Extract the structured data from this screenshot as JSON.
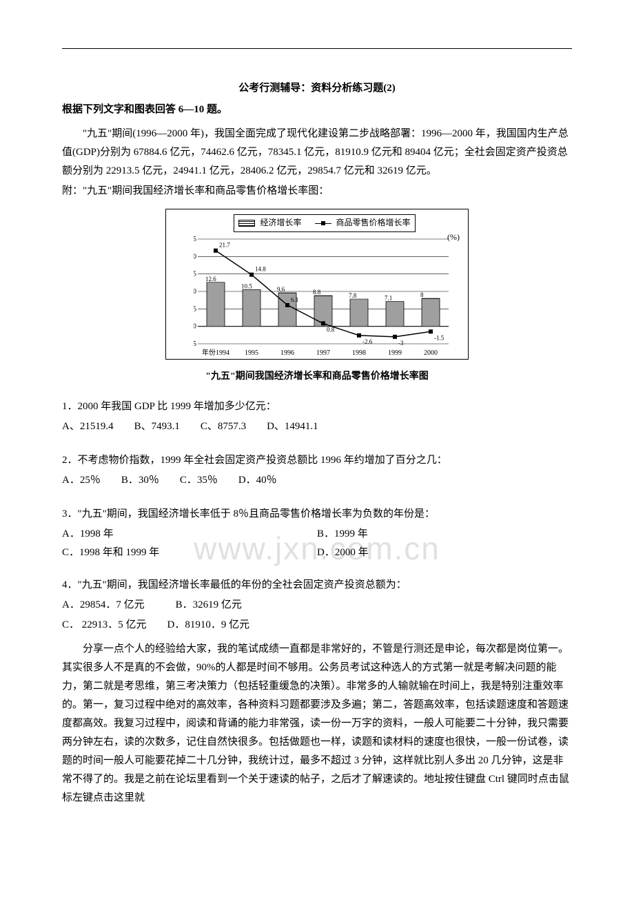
{
  "title": "公考行测辅导：资料分析练习题(2)",
  "instruction": "根据下列文字和图表回答 6—10 题。",
  "passage1": "\"九五\"期间(1996—2000 年)，我国全面完成了现代化建设第二步战略部署：1996—2000 年，我国国内生产总值(GDP)分别为 67884.6 亿元，74462.6 亿元，78345.1 亿元，81910.9 亿元和 89404 亿元；全社会固定资产投资总额分别为 22913.5 亿元，24941.1 亿元，28406.2 亿元，29854.7 亿元和 32619 亿元。",
  "passage2": "附：\"九五\"期间我国经济增长率和商品零售价格增长率图：",
  "chart": {
    "type": "bar+line",
    "legend_bar": "经济增长率",
    "legend_line": "商品零售价格增长率",
    "unit": "(%)",
    "years": [
      "1994",
      "1995",
      "1996",
      "1997",
      "1998",
      "1999",
      "2000"
    ],
    "bar_values": [
      12.6,
      10.5,
      9.6,
      8.8,
      7.8,
      7.1,
      8.0
    ],
    "line_values": [
      21.7,
      14.8,
      6.1,
      0.8,
      -2.6,
      -3.0,
      -1.5
    ],
    "ylim": [
      -5,
      25
    ],
    "yticks": [
      -5,
      0,
      5,
      10,
      15,
      20,
      25
    ],
    "xaxis_label": "年份",
    "year_label_text": "年份1994",
    "bar_color_pattern": "hatched",
    "line_color": "#000000",
    "bg_color": "#ffffff",
    "border_color": "#000000",
    "grid_color": "#000000",
    "label_fontsize": 12,
    "bar_width": 0.5,
    "caption": "\"九五\"期间我国经济增长率和商品零售价格增长率图"
  },
  "q1": {
    "stem": "1．2000 年我国 GDP 比 1999 年增加多少亿元：",
    "opts": "A、21519.4　　B、7493.1　　C、8757.3　　D、14941.1"
  },
  "q2": {
    "stem": "2．不考虑物价指数，1999 年全社会固定资产投资总额比 1996 年约增加了百分之几：",
    "opts": "A．25％　　B．30％　　C．35％　　D．40％"
  },
  "q3": {
    "stem": "3．\"九五\"期间，我国经济增长率低于 8％且商品零售价格增长率为负数的年份是：",
    "a": "A．1998 年",
    "b": "B．1999 年",
    "c": "C．1998 年和 1999 年",
    "d": "D．2000 年"
  },
  "q4": {
    "stem": "4．\"九五\"期间，我国经济增长率最低的年份的全社会固定资产投资总额为：",
    "line1": "A．29854．7 亿元　　　B．32619 亿元",
    "line2": "C．  22913．5 亿元　　D．81910．9 亿元"
  },
  "bigpara": "分享一点个人的经验给大家，我的笔试成绩一直都是非常好的，不管是行测还是申论，每次都是岗位第一。其实很多人不是真的不会做，90%的人都是时间不够用。公务员考试这种选人的方式第一就是考解决问题的能力，第二就是考思维，第三考决策力（包括轻重缓急的决策）。非常多的人输就输在时间上，我是特别注重效率的。第一，复习过程中绝对的高效率，各种资料习题都要涉及多遍；第二，答题高效率，包括读题速度和答题速度都高效。我复习过程中，阅读和背诵的能力非常强，读一份一万字的资料，一般人可能要二十分钟，我只需要两分钟左右，读的次数多，记住自然快很多。包括做题也一样，读题和读材料的速度也很快，一般一份试卷，读题的时间一般人可能要花掉二十几分钟，我统计过，最多不超过 3 分钟，这样就比别人多出 20 几分钟，这是非常不得了的。我是之前在论坛里看到一个关于速读的帖子，之后才了解速读的。地址按住键盘 Ctrl 键同时点击鼠标左键点击这里就",
  "watermark": "www.jxn.com.cn"
}
